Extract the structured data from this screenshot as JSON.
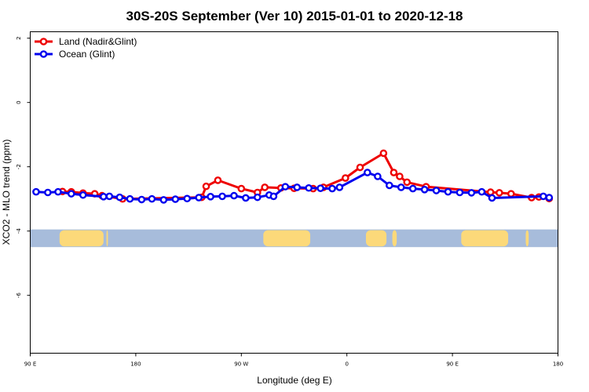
{
  "chart_data": {
    "type": "line",
    "title": "30S-20S September (Ver 10)   2015-01-01 to 2020-12-18",
    "xlabel": "Longitude (deg E)",
    "ylabel": "XCO2 - MLO trend (ppm)",
    "xlim": [
      90,
      450
    ],
    "ylim": [
      -7.8,
      2.2
    ],
    "x_ticks": [
      {
        "value": 90,
        "label": "90 E"
      },
      {
        "value": 162,
        "label": "180"
      },
      {
        "value": 234,
        "label": "90 W"
      },
      {
        "value": 306,
        "label": "0"
      },
      {
        "value": 378,
        "label": "90 E"
      },
      {
        "value": 450,
        "label": "180"
      }
    ],
    "y_ticks": [
      {
        "value": 2,
        "label": "2"
      },
      {
        "value": 0,
        "label": "0"
      },
      {
        "value": -2,
        "label": "-2"
      },
      {
        "value": -4,
        "label": "-4"
      },
      {
        "value": -6,
        "label": "-6"
      }
    ],
    "series": [
      {
        "name": "Land (Nadir&Glint)",
        "color": "#ee0000",
        "x": [
          112,
          118,
          126,
          134,
          139,
          153,
          207,
          210,
          218,
          234,
          245,
          250,
          261,
          270,
          283,
          290,
          305,
          315,
          331,
          338,
          342,
          347,
          360,
          404,
          410,
          418,
          432,
          437,
          444
        ],
        "y": [
          -2.77,
          -2.78,
          -2.82,
          -2.84,
          -2.9,
          -3.0,
          -2.95,
          -2.61,
          -2.42,
          -2.68,
          -2.8,
          -2.64,
          -2.66,
          -2.67,
          -2.68,
          -2.64,
          -2.35,
          -2.02,
          -1.58,
          -2.18,
          -2.3,
          -2.48,
          -2.62,
          -2.79,
          -2.81,
          -2.84,
          -2.96,
          -2.94,
          -2.99
        ]
      },
      {
        "name": "Ocean (Glint)",
        "color": "#0000ee",
        "x": [
          94,
          102,
          109,
          118,
          126,
          140,
          144,
          151,
          158,
          166,
          173,
          181,
          189,
          197,
          205,
          213,
          221,
          229,
          237,
          245,
          253,
          256,
          264,
          272,
          280,
          288,
          296,
          301,
          320,
          327,
          335,
          343,
          351,
          359,
          367,
          375,
          383,
          391,
          398,
          405,
          440,
          444
        ],
        "y": [
          -2.78,
          -2.8,
          -2.78,
          -2.84,
          -2.88,
          -2.93,
          -2.92,
          -2.95,
          -3.0,
          -3.02,
          -3.0,
          -3.03,
          -3.01,
          -2.99,
          -2.96,
          -2.93,
          -2.92,
          -2.9,
          -2.97,
          -2.95,
          -2.88,
          -2.92,
          -2.62,
          -2.64,
          -2.66,
          -2.67,
          -2.68,
          -2.64,
          -2.18,
          -2.3,
          -2.58,
          -2.64,
          -2.68,
          -2.71,
          -2.74,
          -2.78,
          -2.8,
          -2.81,
          -2.78,
          -2.97,
          -2.92,
          -2.96
        ]
      }
    ],
    "background_band": {
      "y_range": [
        -4.5,
        -3.95
      ],
      "ocean_color": "#a7bcdb",
      "land_color": "#fcd97a",
      "land_segments": [
        [
          110,
          140
        ],
        [
          142,
          143
        ],
        [
          249,
          281
        ],
        [
          319,
          333
        ],
        [
          337,
          340
        ],
        [
          384,
          416
        ],
        [
          428,
          430
        ]
      ]
    },
    "legend_position": "top-left"
  }
}
